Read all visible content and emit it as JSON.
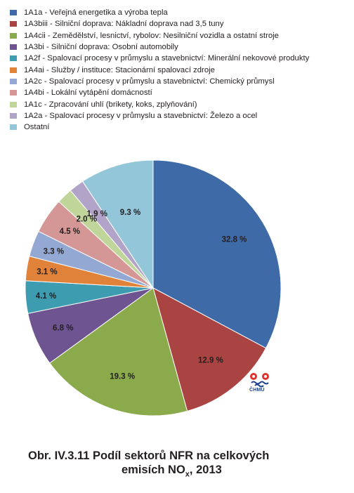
{
  "chart_data": {
    "type": "pie",
    "categories": [
      "1A1a - Veřejná energetika a výroba tepla",
      "1A3biii - Silniční doprava: Nákladní doprava nad 3,5 tuny",
      "1A4cii - Zemědělství, lesnictví, rybolov: Nesilniční vozidla a ostatní stroje",
      "1A3bi - Silniční doprava: Osobní automobily",
      "1A2f - Spalovací procesy v průmyslu a stavebnictví: Minerální nekovové produkty",
      "1A4ai - Služby / instituce: Stacionární spalovací zdroje",
      "1A2c - Spalovací procesy v průmyslu a stavebnictví: Chemický průmysl",
      "1A4bi - Lokální vytápění domácností",
      "1A1c - Zpracování uhlí (brikety, koks, zplyňování)",
      "1A2a - Spalovací procesy v průmyslu a stavebnictví: Železo a ocel",
      "Ostatní"
    ],
    "values": [
      32.8,
      12.9,
      19.3,
      6.8,
      4.1,
      3.1,
      3.3,
      4.5,
      2.0,
      1.9,
      9.3
    ],
    "data_labels": [
      "32.8 %",
      "12.9 %",
      "19.3 %",
      "6.8 %",
      "4.1 %",
      "3.1 %",
      "3.3 %",
      "4.5 %",
      "2.0 %",
      "1.9 %",
      "9.3 %"
    ],
    "colors": [
      "#3e6aa8",
      "#aa4442",
      "#8aaa4b",
      "#6e5591",
      "#3e9cb0",
      "#e0823a",
      "#93a8d3",
      "#d49795",
      "#c0d59a",
      "#b2a4c8",
      "#93c6d8"
    ],
    "legend_placement": "top-left"
  },
  "logo": {
    "text": "ČHMÚ",
    "icon": "chmu-logo-icon"
  },
  "caption": {
    "prefix": "Obr. IV.3.11  Podíl sektorů NFR na celkových",
    "line2_start": "emisích NO",
    "subscript": "x",
    "line2_end": ", 2013"
  }
}
